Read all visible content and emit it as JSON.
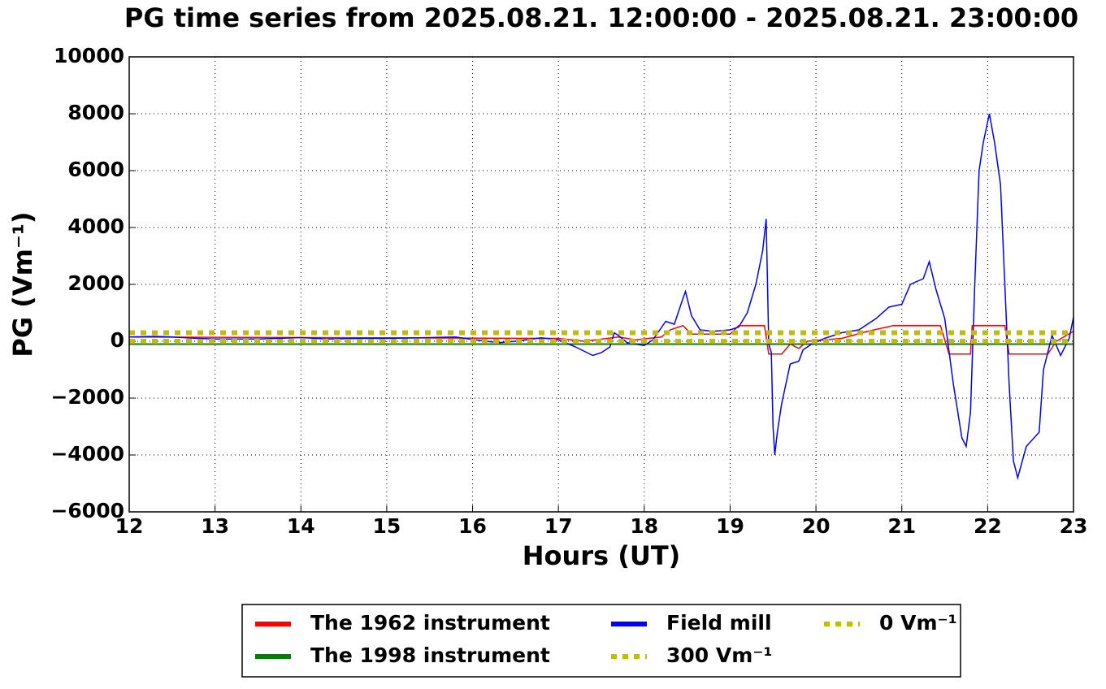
{
  "chart_data": {
    "type": "line",
    "title": "PG time series from 2025.08.21. 12:00:00 - 2025.08.21. 23:00:00",
    "x_label": "Hours (UT)",
    "y_label": "PG (Vm⁻¹)",
    "xlim": [
      12,
      23
    ],
    "xticks": [
      12,
      13,
      14,
      15,
      16,
      17,
      18,
      19,
      20,
      21,
      22,
      23
    ],
    "ylim": [
      -6000,
      10000
    ],
    "yticks": [
      {
        "value": -6000,
        "label": "−6000"
      },
      {
        "value": -4000,
        "label": "−4000"
      },
      {
        "value": -2000,
        "label": "−2000"
      },
      0,
      2000,
      4000,
      6000,
      8000,
      10000
    ],
    "grid": true,
    "legend": "bottom",
    "series": [
      {
        "name": "The 1962 instrument",
        "color": "#ff0000",
        "width": 1.5,
        "legend_width": 6,
        "dashed": false,
        "x": [
          12,
          17,
          17.3,
          17.7,
          17.9,
          18.2,
          18.3,
          18.45,
          18.55,
          19,
          19.1,
          19.4,
          19.45,
          19.6,
          19.7,
          19.8,
          19.9,
          20.3,
          20.6,
          20.9,
          21.45,
          21.55,
          21.8,
          21.82,
          22.2,
          22.25,
          22.7,
          22.8,
          23
        ],
        "values": [
          150,
          100,
          0,
          150,
          50,
          150,
          400,
          550,
          250,
          250,
          550,
          550,
          -450,
          -450,
          -100,
          -250,
          0,
          100,
          350,
          550,
          550,
          -450,
          -450,
          550,
          550,
          -450,
          -450,
          0,
          350
        ]
      },
      {
        "name": "The 1998 instrument",
        "color": "#008000",
        "width": 2,
        "legend_width": 6,
        "dashed": false,
        "x": [
          12,
          23
        ],
        "values": [
          -100,
          -100
        ]
      },
      {
        "name": "Field mill",
        "color": "#0000ff",
        "width": 1.5,
        "legend_width": 6,
        "dashed": false,
        "x": [
          12,
          12.3,
          12.5,
          12.8,
          13,
          13.5,
          14,
          14.3,
          14.7,
          15,
          15.5,
          15.8,
          16,
          16.3,
          16.5,
          16.8,
          17,
          17.2,
          17.4,
          17.5,
          17.6,
          17.65,
          17.7,
          17.8,
          18,
          18.1,
          18.25,
          18.35,
          18.45,
          18.48,
          18.55,
          18.65,
          18.8,
          19,
          19.1,
          19.2,
          19.3,
          19.38,
          19.42,
          19.45,
          19.48,
          19.5,
          19.52,
          19.55,
          19.6,
          19.65,
          19.7,
          19.8,
          19.85,
          19.95,
          20.1,
          20.3,
          20.5,
          20.7,
          20.85,
          21,
          21.1,
          21.25,
          21.32,
          21.4,
          21.5,
          21.6,
          21.7,
          21.75,
          21.8,
          21.85,
          21.9,
          21.95,
          22.02,
          22.08,
          22.15,
          22.2,
          22.25,
          22.3,
          22.35,
          22.45,
          22.6,
          22.65,
          22.75,
          22.85,
          22.95,
          23
        ],
        "values": [
          150,
          170,
          150,
          100,
          80,
          80,
          130,
          80,
          100,
          100,
          130,
          150,
          60,
          -50,
          0,
          120,
          50,
          -200,
          -500,
          -400,
          -200,
          300,
          200,
          -50,
          -150,
          50,
          700,
          600,
          1500,
          1750,
          900,
          400,
          350,
          400,
          500,
          1000,
          2000,
          3200,
          4300,
          -100,
          -400,
          -3000,
          -4000,
          -3200,
          -2200,
          -1500,
          -800,
          -700,
          -300,
          -100,
          100,
          300,
          400,
          800,
          1200,
          1300,
          2000,
          2200,
          2800,
          1800,
          800,
          -1500,
          -3400,
          -3700,
          -2500,
          2000,
          6000,
          7000,
          8000,
          7000,
          5500,
          2000,
          -1500,
          -4200,
          -4800,
          -3700,
          -3200,
          -1000,
          200,
          -500,
          100,
          850
        ]
      },
      {
        "name": "300 Vm⁻¹",
        "color": "#bfbf00",
        "width": 6,
        "legend_width": 6,
        "dashed": true,
        "x": [
          12,
          23
        ],
        "values": [
          300,
          300
        ]
      },
      {
        "name": "0 Vm⁻¹",
        "color": "#bfbf00",
        "width": 6,
        "legend_width": 6,
        "dashed": true,
        "x": [
          12,
          23
        ],
        "values": [
          0,
          0
        ]
      }
    ]
  }
}
